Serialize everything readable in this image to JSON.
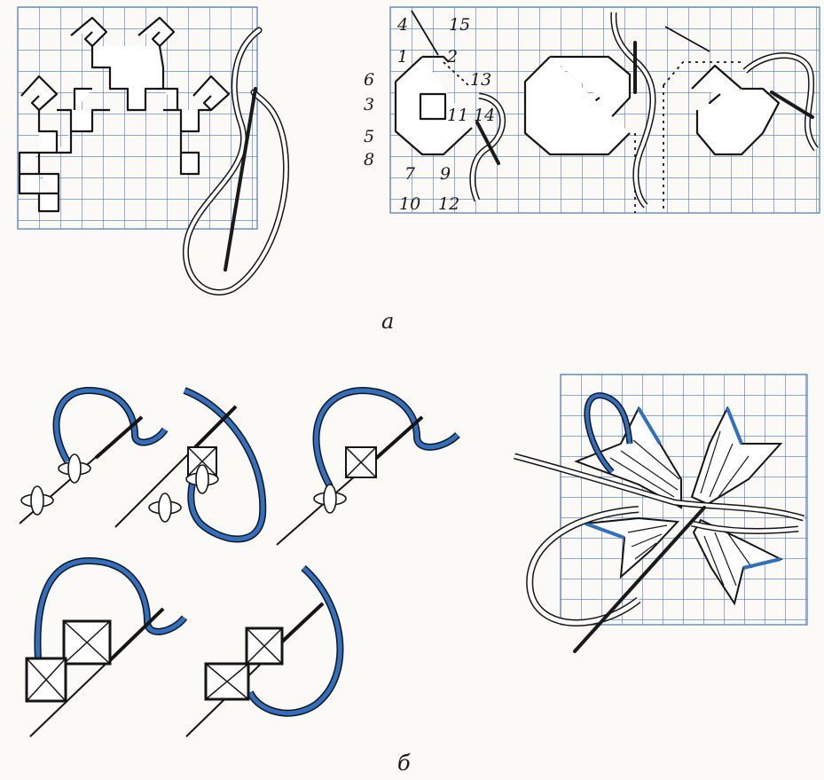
{
  "colors": {
    "paper": "#fbfaf6",
    "grid": "#4a78c8",
    "thread_blue": "#2f6fc4",
    "thread_outline": "#151515",
    "thread_white": "#ffffff",
    "needle": "#1a1a1a"
  },
  "figure_a": {
    "caption": "а",
    "stitch_numbers": [
      "4",
      "15",
      "1",
      "2",
      "13",
      "6",
      "3",
      "11",
      "14",
      "5",
      "8",
      "7",
      "9",
      "10",
      "12"
    ]
  },
  "figure_b": {
    "caption": "б"
  }
}
